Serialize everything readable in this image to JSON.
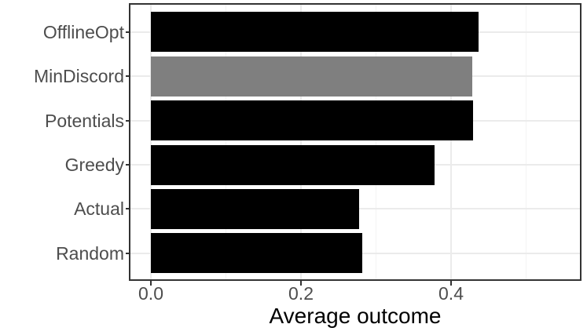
{
  "figure": {
    "background": "#FFFFFF"
  },
  "chart_data": {
    "type": "bar",
    "orientation": "horizontal",
    "title": "",
    "xlabel": "Average outcome",
    "ylabel": "",
    "categories": [
      "OfflineOpt",
      "MinDiscord",
      "Potentials",
      "Greedy",
      "Actual",
      "Random"
    ],
    "values": [
      0.437,
      0.428,
      0.429,
      0.378,
      0.278,
      0.282
    ],
    "bar_colors": [
      "#000000",
      "#7F7F7F",
      "#000000",
      "#000000",
      "#000000",
      "#000000"
    ],
    "highlighted_category": "MinDiscord",
    "x_ticks": {
      "labels": [
        "0.0",
        "0.2",
        "0.4"
      ],
      "values": [
        0.0,
        0.2,
        0.4
      ]
    },
    "x_minor_ticks": [
      0.1,
      0.3,
      0.5
    ],
    "xlim": [
      -0.027,
      0.572
    ],
    "grid": {
      "major": true,
      "minor": true
    },
    "legend": "none",
    "colors": {
      "bar_default": "#000000",
      "bar_highlight": "#7F7F7F",
      "axis_text": "#4D4D4D",
      "axis_title": "#000000",
      "panel_border": "#333333",
      "grid_major": "#EBEBEB",
      "grid_minor": "#F3F3F3",
      "tick_mark": "#333333",
      "panel_bg": "#FFFFFF"
    }
  }
}
